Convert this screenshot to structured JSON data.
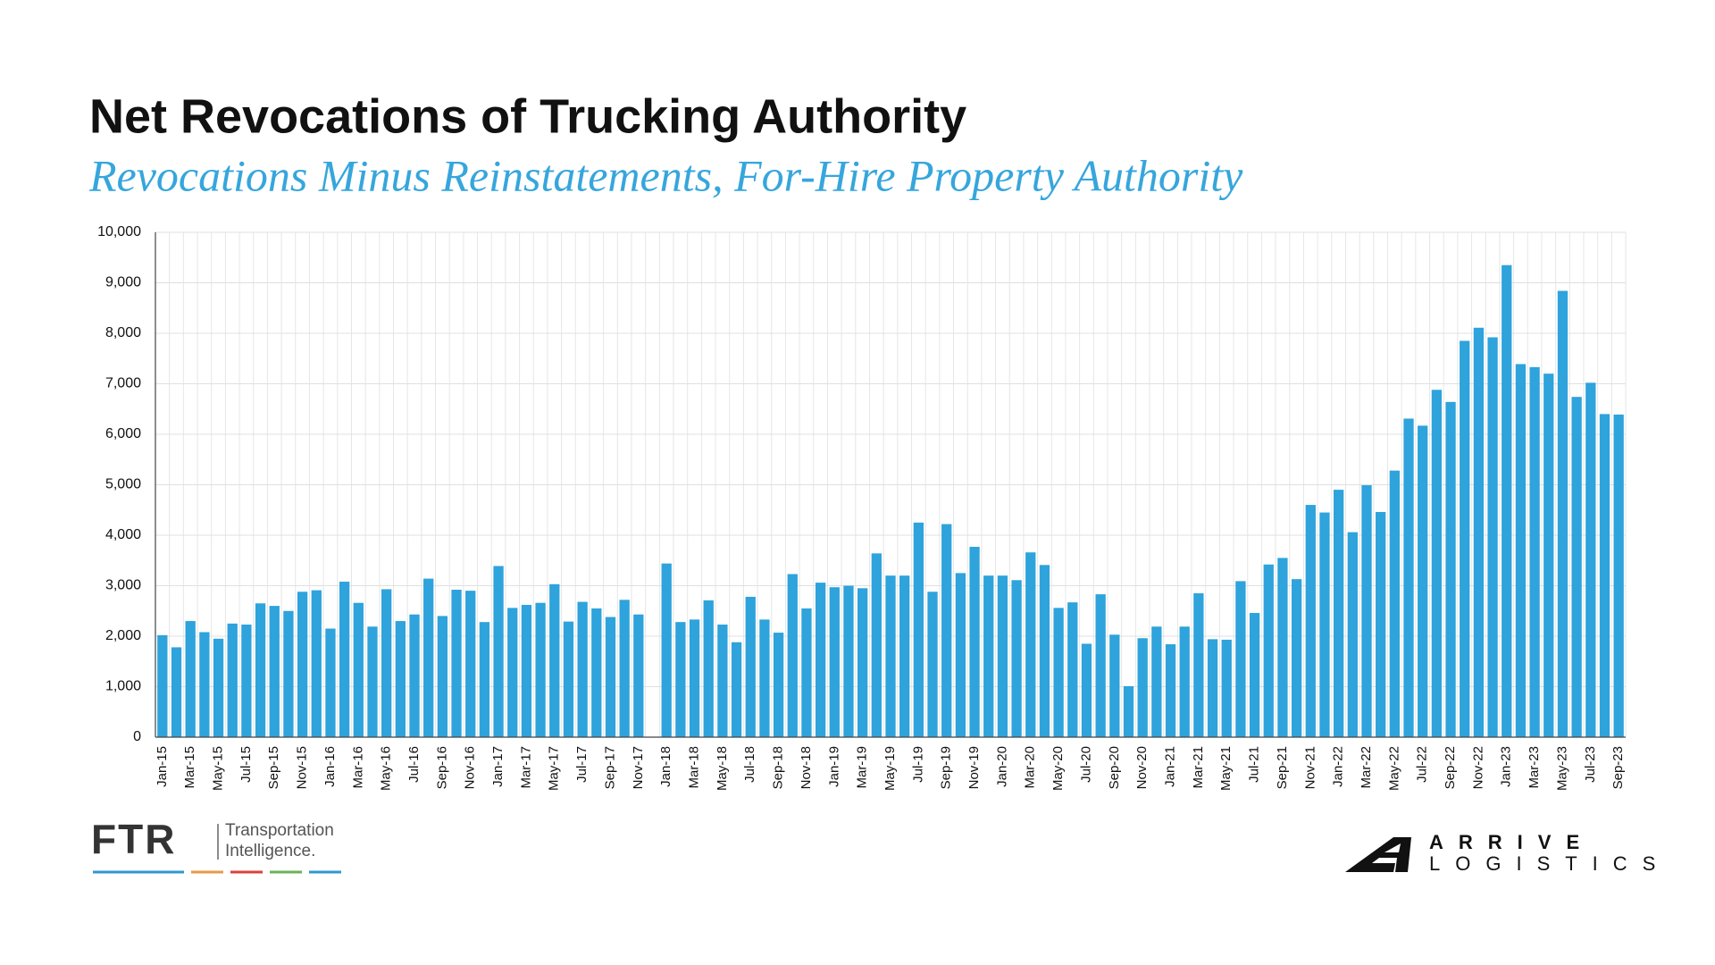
{
  "chart_data": {
    "type": "bar",
    "title": "Net Revocations of Trucking Authority",
    "subtitle": "Revocations Minus Reinstatements, For-Hire Property Authority",
    "color": "#2ea3dc",
    "grid": true,
    "categories": [
      "Jan-15",
      null,
      "Mar-15",
      null,
      "May-15",
      null,
      "Jul-15",
      null,
      "Sep-15",
      null,
      "Nov-15",
      null,
      "Jan-16",
      null,
      "Mar-16",
      null,
      "May-16",
      null,
      "Jul-16",
      null,
      "Sep-16",
      null,
      "Nov-16",
      null,
      "Jan-17",
      null,
      "Mar-17",
      null,
      "May-17",
      null,
      "Jul-17",
      null,
      "Sep-17",
      null,
      "Nov-17",
      null,
      "Jan-18",
      null,
      "Mar-18",
      null,
      "May-18",
      null,
      "Jul-18",
      null,
      "Sep-18",
      null,
      "Nov-18",
      null,
      "Jan-19",
      null,
      "Mar-19",
      null,
      "May-19",
      null,
      "Jul-19",
      null,
      "Sep-19",
      null,
      "Nov-19",
      null,
      "Jan-20",
      null,
      "Mar-20",
      null,
      "May-20",
      null,
      "Jul-20",
      null,
      "Sep-20",
      null,
      "Nov-20",
      null,
      "Jan-21",
      null,
      "Mar-21",
      null,
      "May-21",
      null,
      "Jul-21",
      null,
      "Sep-21",
      null,
      "Nov-21",
      null,
      "Jan-22",
      null,
      "Mar-22",
      null,
      "May-22",
      null,
      "Jul-22",
      null,
      "Sep-22",
      null,
      "Nov-22",
      null,
      "Jan-23",
      null,
      "Mar-23",
      null,
      "May-23",
      null,
      "Jul-23",
      null,
      "Sep-23"
    ],
    "values": [
      2020,
      1780,
      2300,
      2080,
      1950,
      2250,
      2230,
      2650,
      2600,
      2500,
      2880,
      2910,
      2150,
      3080,
      2660,
      2190,
      2930,
      2300,
      2430,
      3140,
      2400,
      2920,
      2900,
      2280,
      3390,
      2560,
      2620,
      2660,
      3030,
      2290,
      2680,
      2550,
      2380,
      2720,
      2430,
      null,
      3440,
      2280,
      2330,
      2710,
      2230,
      1880,
      2780,
      2330,
      2070,
      3230,
      2550,
      3060,
      2970,
      3000,
      2950,
      3640,
      3200,
      3200,
      4250,
      2880,
      4220,
      3250,
      3770,
      3200,
      3200,
      3110,
      3660,
      3410,
      2560,
      2670,
      1850,
      2830,
      2030,
      1010,
      1960,
      2190,
      1840,
      2190,
      2850,
      1940,
      1930,
      3090,
      2460,
      3420,
      3550,
      3130,
      4600,
      4450,
      4900,
      4060,
      4990,
      4460,
      5280,
      6310,
      6170,
      6880,
      6640,
      7850,
      8110,
      7920,
      9350,
      7390,
      7330,
      7200,
      8840,
      6740,
      7020,
      6400,
      6390
    ],
    "ylim": [
      0,
      10000
    ],
    "yticks": [
      0,
      {
        "value": 1000,
        "label": "1,000"
      },
      {
        "value": 2000,
        "label": "2,000"
      },
      {
        "value": 3000,
        "label": "3,000"
      },
      {
        "value": 4000,
        "label": "4,000"
      },
      {
        "value": 5000,
        "label": "5,000"
      },
      {
        "value": 6000,
        "label": "6,000"
      },
      {
        "value": 7000,
        "label": "7,000"
      },
      {
        "value": 8000,
        "label": "8,000"
      },
      {
        "value": 9000,
        "label": "9,000"
      },
      {
        "value": 10000,
        "label": "10,000"
      }
    ]
  },
  "logos": {
    "ftr": {
      "mark": "FTR",
      "tagline_1": "Transportation",
      "tagline_2": "Intelligence."
    },
    "arrive": {
      "line_1": "ARRIVE",
      "line_2": "LOGISTICS"
    }
  }
}
